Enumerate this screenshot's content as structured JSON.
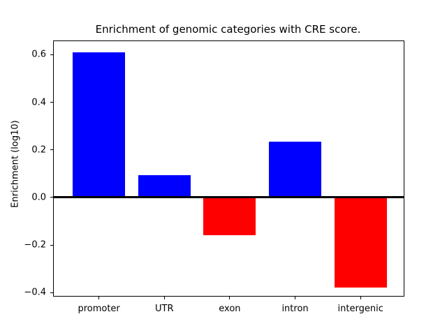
{
  "chart_data": {
    "type": "bar",
    "title": "Enrichment of genomic categories with CRE score.",
    "ylabel": "Enrichment (log10)",
    "xlabel": "",
    "categories": [
      "promoter",
      "UTR",
      "exon",
      "intron",
      "intergenic"
    ],
    "values": [
      0.61,
      0.095,
      -0.16,
      0.235,
      -0.38
    ],
    "bar_colors": [
      "#0000ff",
      "#0000ff",
      "#ff0000",
      "#0000ff",
      "#ff0000"
    ],
    "positive_color": "#0000ff",
    "negative_color": "#ff0000",
    "bar_width": 0.8,
    "xlim": [
      -0.69,
      4.66
    ],
    "ylim": [
      -0.414,
      0.657
    ],
    "yticks": [
      {
        "value": 0.6,
        "label": "0.6"
      },
      {
        "value": 0.4,
        "label": "0.4"
      },
      {
        "value": 0.2,
        "label": "0.2"
      },
      {
        "value": 0.0,
        "label": "0.0"
      },
      {
        "value": -0.2,
        "label": "−0.2"
      },
      {
        "value": -0.4,
        "label": "−0.4"
      }
    ],
    "zero_line": {
      "value": 0.0,
      "color": "#000000"
    },
    "grid": false,
    "legend": "none",
    "background": "#ffffff"
  }
}
